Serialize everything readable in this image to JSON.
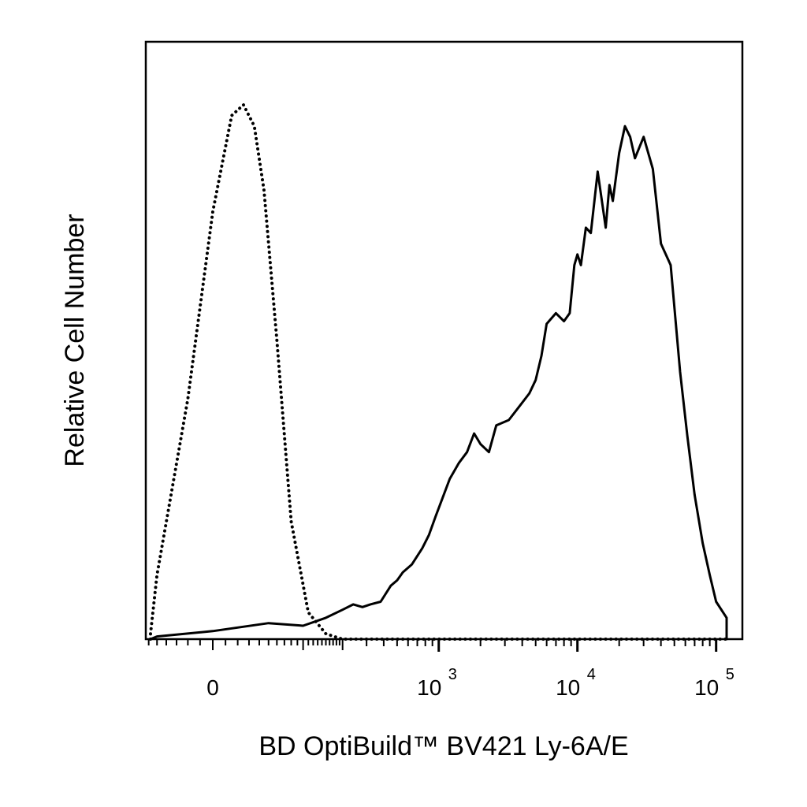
{
  "chart_data": {
    "type": "line",
    "title": "",
    "xlabel": "BD OptiBuild™ BV421 Ly-6A/E",
    "ylabel": "Relative Cell Number",
    "x_scale": "biexponential",
    "xlim": [
      -200,
      250000
    ],
    "ylim": [
      0,
      100
    ],
    "grid": false,
    "legend": "none",
    "x_tick_labels": [
      {
        "value": 0,
        "base": "0",
        "exp": ""
      },
      {
        "value": 1000,
        "base": "10",
        "exp": "3"
      },
      {
        "value": 10000,
        "base": "10",
        "exp": "4"
      },
      {
        "value": 100000,
        "base": "10",
        "exp": "5"
      }
    ],
    "series": [
      {
        "style": "dotted",
        "color": "#000000",
        "x": [
          -200,
          -100,
          -50,
          -20,
          0,
          15,
          25,
          35,
          45,
          60,
          80,
          110,
          150,
          200,
          250000
        ],
        "y": [
          0,
          1,
          12,
          45,
          80,
          98,
          100,
          96,
          84,
          56,
          22,
          5,
          1,
          0,
          0
        ]
      },
      {
        "style": "solid",
        "color": "#000000",
        "x": [
          -200,
          -50,
          0,
          50,
          100,
          150,
          200,
          240,
          280,
          320,
          380,
          450,
          500,
          550,
          640,
          760,
          850,
          950,
          1050,
          1200,
          1400,
          1600,
          1800,
          2000,
          2300,
          2600,
          3200,
          3800,
          4500,
          5000,
          5500,
          6000,
          7000,
          8000,
          8800,
          9500,
          10000,
          10600,
          11500,
          12500,
          14000,
          16000,
          17000,
          18000,
          20000,
          22000,
          24000,
          26000,
          30000,
          35000,
          40000,
          47000,
          55000,
          62000,
          70000,
          80000,
          90000,
          100000,
          130000,
          160000,
          250000
        ],
        "y": [
          0,
          0.5,
          1.5,
          3,
          2.5,
          4,
          5.5,
          6.5,
          6,
          6.5,
          7,
          10,
          11,
          12.5,
          14,
          17,
          19.5,
          23,
          26,
          30,
          33,
          35,
          38.5,
          36.5,
          35,
          40,
          41,
          43.5,
          46,
          48.5,
          53,
          59,
          61,
          59.5,
          61,
          70,
          72,
          70,
          77,
          76,
          87.5,
          77,
          85,
          82,
          91,
          96,
          94,
          90,
          94,
          88,
          74,
          70,
          50,
          38,
          27,
          18,
          12,
          7,
          4,
          1,
          0
        ]
      }
    ]
  }
}
